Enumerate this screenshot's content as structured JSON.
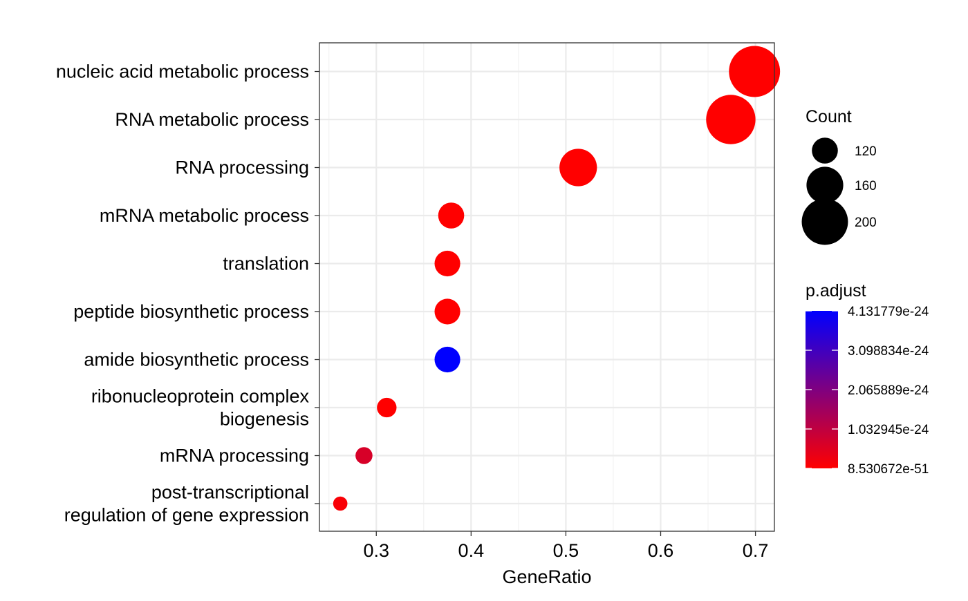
{
  "chart_data": {
    "type": "scatter",
    "title": "",
    "xlabel": "GeneRatio",
    "ylabel": "",
    "xlim": [
      0.24,
      0.72
    ],
    "x_ticks": [
      0.3,
      0.4,
      0.5,
      0.6,
      0.7
    ],
    "x_tick_labels": [
      "0.3",
      "0.4",
      "0.5",
      "0.6",
      "0.7"
    ],
    "grid": true,
    "legend_position": "right",
    "categories": [
      [
        "nucleic acid metabolic process"
      ],
      [
        "RNA metabolic process"
      ],
      [
        "RNA processing"
      ],
      [
        "mRNA metabolic process"
      ],
      [
        "translation"
      ],
      [
        "peptide biosynthetic process"
      ],
      [
        "amide biosynthetic process"
      ],
      [
        "ribonucleoprotein complex",
        "biogenesis"
      ],
      [
        "mRNA processing"
      ],
      [
        "post-transcriptional",
        "regulation of gene expression"
      ]
    ],
    "points": [
      {
        "category": "nucleic acid metabolic process",
        "gene_ratio": 0.699,
        "count": 222,
        "p_adjust": 0
      },
      {
        "category": "RNA metabolic process",
        "gene_ratio": 0.674,
        "count": 214,
        "p_adjust": 0
      },
      {
        "category": "RNA processing",
        "gene_ratio": 0.513,
        "count": 163,
        "p_adjust": 0
      },
      {
        "category": "mRNA metabolic process",
        "gene_ratio": 0.379,
        "count": 120,
        "p_adjust": 0
      },
      {
        "category": "translation",
        "gene_ratio": 0.375,
        "count": 119,
        "p_adjust": 0
      },
      {
        "category": "peptide biosynthetic process",
        "gene_ratio": 0.375,
        "count": 119,
        "p_adjust": 0
      },
      {
        "category": "amide biosynthetic process",
        "gene_ratio": 0.375,
        "count": 119,
        "p_adjust": 4.131779e-24
      },
      {
        "category": "ribonucleoprotein complex biogenesis",
        "gene_ratio": 0.311,
        "count": 99,
        "p_adjust": 0
      },
      {
        "category": "mRNA processing",
        "gene_ratio": 0.287,
        "count": 91,
        "p_adjust": 6.5e-25
      },
      {
        "category": "post-transcriptional regulation of gene expression",
        "gene_ratio": 0.262,
        "count": 83,
        "p_adjust": 1e-25
      }
    ],
    "size_legend": {
      "title": "Count",
      "items": [
        {
          "label": "120",
          "value": 120
        },
        {
          "label": "160",
          "value": 160
        },
        {
          "label": "200",
          "value": 200
        }
      ]
    },
    "color_legend": {
      "title": "p.adjust",
      "low_color": "#ff0000",
      "high_color": "#0000ff",
      "range": [
        8.530672e-51,
        4.131779e-24
      ],
      "tick_labels": [
        "4.131779e-24",
        "3.098834e-24",
        "2.065889e-24",
        "1.032945e-24",
        "8.530672e-51"
      ],
      "tick_values": [
        4.131779e-24,
        3.098834e-24,
        2.065889e-24,
        1.032945e-24,
        8.530672e-51
      ]
    }
  }
}
